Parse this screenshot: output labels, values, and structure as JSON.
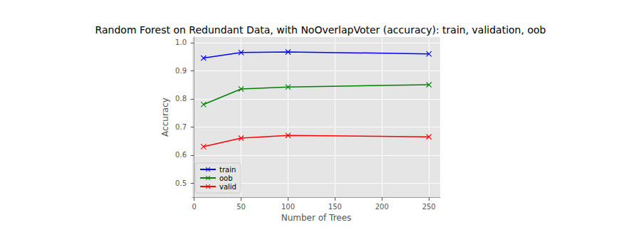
{
  "chart_data": {
    "type": "line",
    "title": "Random Forest on Redundant Data, with NoOverlapVoter (accuracy): train, validation, oob",
    "x_label": "Number of Trees",
    "y_label": "Accuracy",
    "x": [
      10,
      50,
      100,
      250
    ],
    "series": [
      {
        "name": "train",
        "color": "#0000ff",
        "values": [
          0.945,
          0.965,
          0.967,
          0.96
        ]
      },
      {
        "name": "oob",
        "color": "#008000",
        "values": [
          0.78,
          0.835,
          0.842,
          0.85
        ]
      },
      {
        "name": "valid",
        "color": "#ff0000",
        "values": [
          0.63,
          0.66,
          0.67,
          0.665
        ]
      }
    ],
    "marker": "x",
    "xlim": [
      -2,
      262
    ],
    "xticks": [
      0,
      50,
      100,
      150,
      200,
      250
    ],
    "ylim": [
      0.45,
      1.02
    ],
    "yticks": [
      0.5,
      0.6,
      0.7,
      0.8,
      0.9,
      {
        "value": 1.0,
        "label": "1.0"
      }
    ],
    "grid": true,
    "legend": "lower left"
  }
}
